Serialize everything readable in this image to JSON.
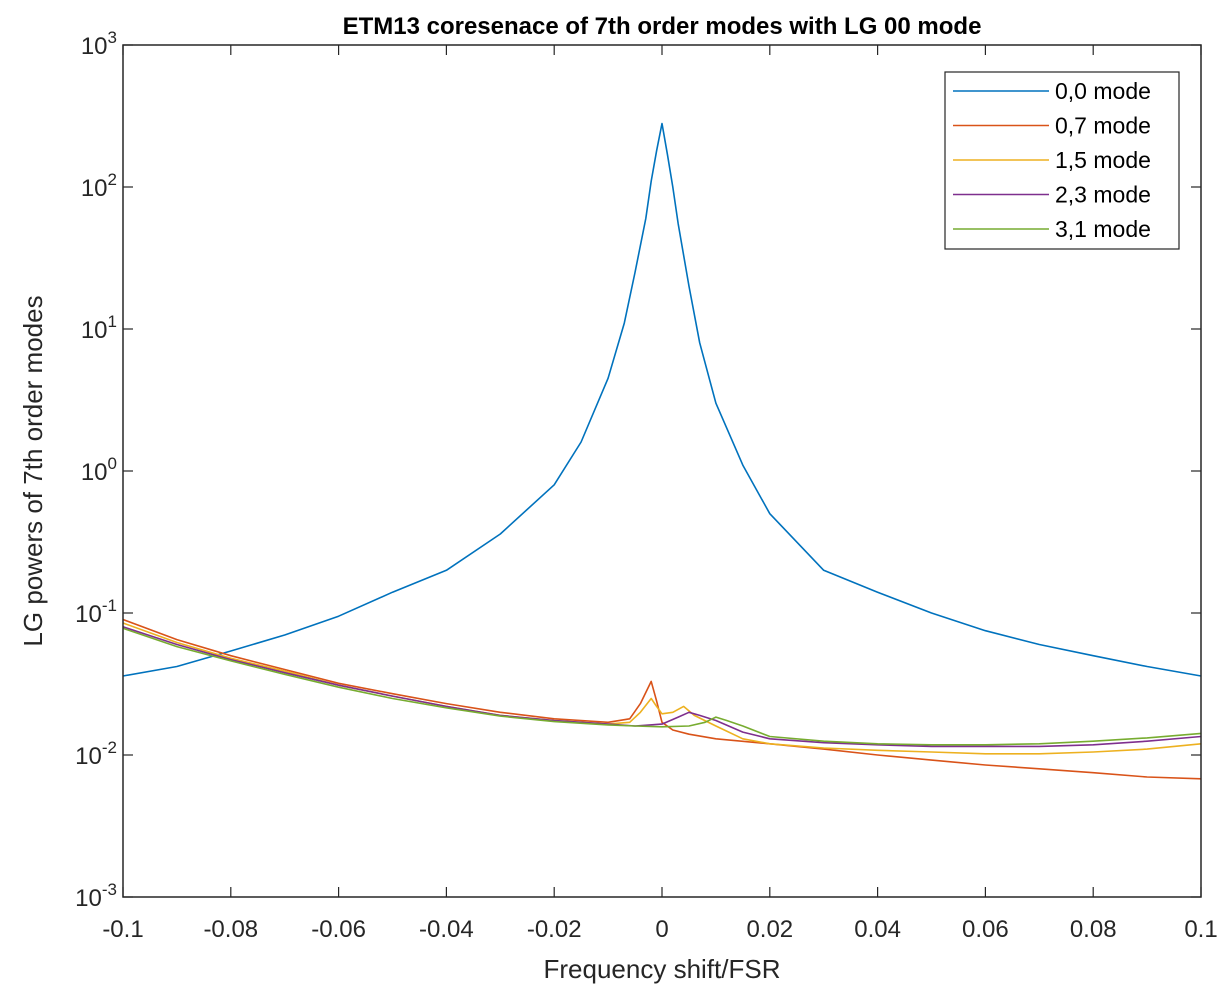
{
  "chart_data": {
    "type": "line",
    "title": "ETM13 coresenace of 7th order modes with LG 00 mode",
    "xlabel": "Frequency shift/FSR",
    "ylabel": "LG powers of 7th order modes",
    "xscale": "linear",
    "yscale": "log",
    "xlim": [
      -0.1,
      0.1
    ],
    "ylim": [
      0.001,
      1000
    ],
    "x_ticks": [
      -0.1,
      -0.08,
      -0.06,
      -0.04,
      -0.02,
      0,
      0.02,
      0.04,
      0.06,
      0.08,
      0.1
    ],
    "x_tick_labels": [
      "-0.1",
      "-0.08",
      "-0.06",
      "-0.04",
      "-0.02",
      "0",
      "0.02",
      "0.04",
      "0.06",
      "0.08",
      "0.1"
    ],
    "y_ticks": [
      {
        "base": "10",
        "exp": "-3",
        "value": 0.001
      },
      {
        "base": "10",
        "exp": "-2",
        "value": 0.01
      },
      {
        "base": "10",
        "exp": "-1",
        "value": 0.1
      },
      {
        "base": "10",
        "exp": "0",
        "value": 1
      },
      {
        "base": "10",
        "exp": "1",
        "value": 10
      },
      {
        "base": "10",
        "exp": "2",
        "value": 100
      },
      {
        "base": "10",
        "exp": "3",
        "value": 1000
      }
    ],
    "grid": false,
    "legend_position": "top-right",
    "series": [
      {
        "name": "0,0 mode",
        "color": "#0072BD",
        "x": [
          -0.1,
          -0.09,
          -0.08,
          -0.07,
          -0.06,
          -0.05,
          -0.04,
          -0.03,
          -0.02,
          -0.015,
          -0.01,
          -0.007,
          -0.005,
          -0.003,
          -0.002,
          -0.001,
          0,
          0.001,
          0.002,
          0.003,
          0.005,
          0.007,
          0.01,
          0.015,
          0.02,
          0.03,
          0.04,
          0.05,
          0.06,
          0.07,
          0.08,
          0.09,
          0.1
        ],
        "y": [
          0.036,
          0.042,
          0.054,
          0.07,
          0.095,
          0.14,
          0.2,
          0.36,
          0.8,
          1.6,
          4.5,
          11,
          25,
          60,
          110,
          180,
          280,
          170,
          100,
          55,
          20,
          8,
          3,
          1.1,
          0.5,
          0.2,
          0.14,
          0.1,
          0.075,
          0.06,
          0.05,
          0.042,
          0.036
        ]
      },
      {
        "name": "0,7 mode",
        "color": "#D95319",
        "x": [
          -0.1,
          -0.09,
          -0.08,
          -0.07,
          -0.06,
          -0.05,
          -0.04,
          -0.03,
          -0.02,
          -0.01,
          -0.006,
          -0.004,
          -0.002,
          -0.001,
          0,
          0.002,
          0.005,
          0.01,
          0.02,
          0.03,
          0.04,
          0.05,
          0.06,
          0.07,
          0.08,
          0.09,
          0.1
        ],
        "y": [
          0.09,
          0.065,
          0.05,
          0.04,
          0.032,
          0.027,
          0.023,
          0.02,
          0.018,
          0.017,
          0.018,
          0.023,
          0.033,
          0.024,
          0.017,
          0.015,
          0.014,
          0.013,
          0.012,
          0.011,
          0.01,
          0.0092,
          0.0085,
          0.008,
          0.0075,
          0.007,
          0.0068
        ]
      },
      {
        "name": "1,5 mode",
        "color": "#EDB120",
        "x": [
          -0.1,
          -0.09,
          -0.08,
          -0.07,
          -0.06,
          -0.05,
          -0.04,
          -0.03,
          -0.02,
          -0.01,
          -0.006,
          -0.004,
          -0.002,
          -0.001,
          0,
          0.002,
          0.004,
          0.006,
          0.01,
          0.015,
          0.02,
          0.03,
          0.04,
          0.05,
          0.06,
          0.07,
          0.08,
          0.09,
          0.1
        ],
        "y": [
          0.085,
          0.062,
          0.048,
          0.039,
          0.031,
          0.026,
          0.022,
          0.019,
          0.0175,
          0.0165,
          0.017,
          0.02,
          0.025,
          0.022,
          0.0195,
          0.02,
          0.022,
          0.019,
          0.016,
          0.013,
          0.012,
          0.0112,
          0.0108,
          0.0105,
          0.0102,
          0.0102,
          0.0105,
          0.011,
          0.012
        ]
      },
      {
        "name": "2,3 mode",
        "color": "#7E2F8E",
        "x": [
          -0.1,
          -0.09,
          -0.08,
          -0.07,
          -0.06,
          -0.05,
          -0.04,
          -0.03,
          -0.02,
          -0.01,
          -0.005,
          0,
          0.003,
          0.005,
          0.007,
          0.01,
          0.015,
          0.02,
          0.03,
          0.04,
          0.05,
          0.06,
          0.07,
          0.08,
          0.09,
          0.1
        ],
        "y": [
          0.08,
          0.06,
          0.047,
          0.038,
          0.031,
          0.026,
          0.022,
          0.019,
          0.0175,
          0.0165,
          0.016,
          0.0165,
          0.0185,
          0.02,
          0.019,
          0.0175,
          0.0145,
          0.013,
          0.0122,
          0.0118,
          0.0115,
          0.0115,
          0.0115,
          0.0118,
          0.0125,
          0.0135
        ]
      },
      {
        "name": "3,1 mode",
        "color": "#77AC30",
        "x": [
          -0.1,
          -0.09,
          -0.08,
          -0.07,
          -0.06,
          -0.05,
          -0.04,
          -0.03,
          -0.02,
          -0.01,
          -0.005,
          0,
          0.005,
          0.008,
          0.01,
          0.012,
          0.015,
          0.02,
          0.03,
          0.04,
          0.05,
          0.06,
          0.07,
          0.08,
          0.09,
          0.1
        ],
        "y": [
          0.078,
          0.058,
          0.046,
          0.037,
          0.03,
          0.025,
          0.0215,
          0.0188,
          0.0172,
          0.0163,
          0.016,
          0.0158,
          0.016,
          0.017,
          0.0185,
          0.0175,
          0.016,
          0.0135,
          0.0125,
          0.012,
          0.0118,
          0.0118,
          0.012,
          0.0125,
          0.0132,
          0.0142
        ]
      }
    ]
  }
}
